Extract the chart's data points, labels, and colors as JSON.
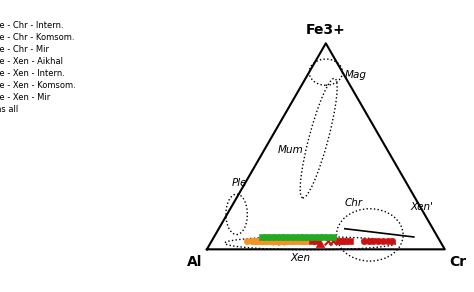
{
  "bg_color": "#ffffff",
  "corner_top": "Fe3+",
  "corner_left": "Al",
  "corner_right": "Cr",
  "mag_label": "Mag",
  "mum_label": "Mum",
  "ple_label": "Ple",
  "chr_label": "Chr",
  "xen_prime_label": "Xen’",
  "xen_label": "Xen",
  "series": [
    {
      "name": "Core - Chr - Intern.",
      "marker": "s",
      "color": "#F49225",
      "mfc": "#F49225",
      "points": [
        [
          0.6,
          0.36,
          0.04
        ],
        [
          0.58,
          0.38,
          0.04
        ],
        [
          0.57,
          0.39,
          0.04
        ],
        [
          0.62,
          0.34,
          0.04
        ],
        [
          0.64,
          0.32,
          0.04
        ],
        [
          0.66,
          0.3,
          0.04
        ],
        [
          0.63,
          0.33,
          0.04
        ],
        [
          0.65,
          0.31,
          0.04
        ],
        [
          0.68,
          0.28,
          0.04
        ],
        [
          0.7,
          0.26,
          0.04
        ],
        [
          0.72,
          0.24,
          0.04
        ],
        [
          0.74,
          0.22,
          0.04
        ],
        [
          0.76,
          0.2,
          0.04
        ],
        [
          0.56,
          0.4,
          0.04
        ]
      ]
    },
    {
      "name": "Core - Chr - Komsom.",
      "marker": "x",
      "color": "#F49225",
      "mfc": "#F49225",
      "points": [
        [
          0.69,
          0.27,
          0.04
        ],
        [
          0.67,
          0.29,
          0.04
        ]
      ]
    },
    {
      "name": "Core - Chr - Mir",
      "marker": "o",
      "color": "#F49225",
      "mfc": "#F49225",
      "points": [
        [
          0.73,
          0.23,
          0.04
        ],
        [
          0.75,
          0.21,
          0.04
        ],
        [
          0.77,
          0.19,
          0.04
        ],
        [
          0.79,
          0.17,
          0.04
        ],
        [
          0.81,
          0.15,
          0.04
        ],
        [
          0.71,
          0.25,
          0.04
        ],
        [
          0.69,
          0.27,
          0.04
        ],
        [
          0.78,
          0.18,
          0.04
        ]
      ]
    },
    {
      "name": "Core - Xen - Aikhal",
      "marker": "^",
      "color": "#CC1111",
      "mfc": "#CC1111",
      "points": [
        [
          0.51,
          0.46,
          0.03
        ]
      ]
    },
    {
      "name": "Core - Xen - Intern.",
      "marker": "s",
      "color": "#CC1111",
      "mfc": "#CC1111",
      "points": [
        [
          0.4,
          0.56,
          0.04
        ],
        [
          0.38,
          0.58,
          0.04
        ],
        [
          0.41,
          0.55,
          0.04
        ],
        [
          0.54,
          0.42,
          0.04
        ],
        [
          0.52,
          0.44,
          0.04
        ],
        [
          0.43,
          0.53,
          0.04
        ]
      ]
    },
    {
      "name": "Core - Xen - Komsom.",
      "marker": "x",
      "color": "#CC1111",
      "mfc": "#CC1111",
      "points": [
        [
          0.45,
          0.51,
          0.04
        ],
        [
          0.47,
          0.49,
          0.04
        ]
      ]
    },
    {
      "name": "Core - Xen - Mir",
      "marker": "o",
      "color": "#CC1111",
      "mfc": "#CC1111",
      "points": [
        [
          0.26,
          0.7,
          0.04
        ],
        [
          0.24,
          0.72,
          0.04
        ],
        [
          0.28,
          0.68,
          0.04
        ],
        [
          0.3,
          0.66,
          0.04
        ],
        [
          0.22,
          0.74,
          0.04
        ],
        [
          0.32,
          0.64,
          0.04
        ],
        [
          0.2,
          0.76,
          0.04
        ]
      ]
    },
    {
      "name": "Rims all",
      "marker": "s",
      "color": "#22AA22",
      "mfc": "#22AA22",
      "points": [
        [
          0.54,
          0.4,
          0.06
        ],
        [
          0.52,
          0.42,
          0.06
        ],
        [
          0.5,
          0.44,
          0.06
        ],
        [
          0.56,
          0.38,
          0.06
        ],
        [
          0.58,
          0.36,
          0.06
        ],
        [
          0.6,
          0.34,
          0.06
        ],
        [
          0.62,
          0.32,
          0.06
        ],
        [
          0.64,
          0.3,
          0.06
        ],
        [
          0.66,
          0.28,
          0.06
        ],
        [
          0.68,
          0.26,
          0.06
        ],
        [
          0.7,
          0.24,
          0.06
        ],
        [
          0.72,
          0.22,
          0.06
        ],
        [
          0.48,
          0.46,
          0.06
        ],
        [
          0.46,
          0.48,
          0.06
        ],
        [
          0.74,
          0.2,
          0.06
        ],
        [
          0.44,
          0.5,
          0.06
        ]
      ]
    }
  ]
}
